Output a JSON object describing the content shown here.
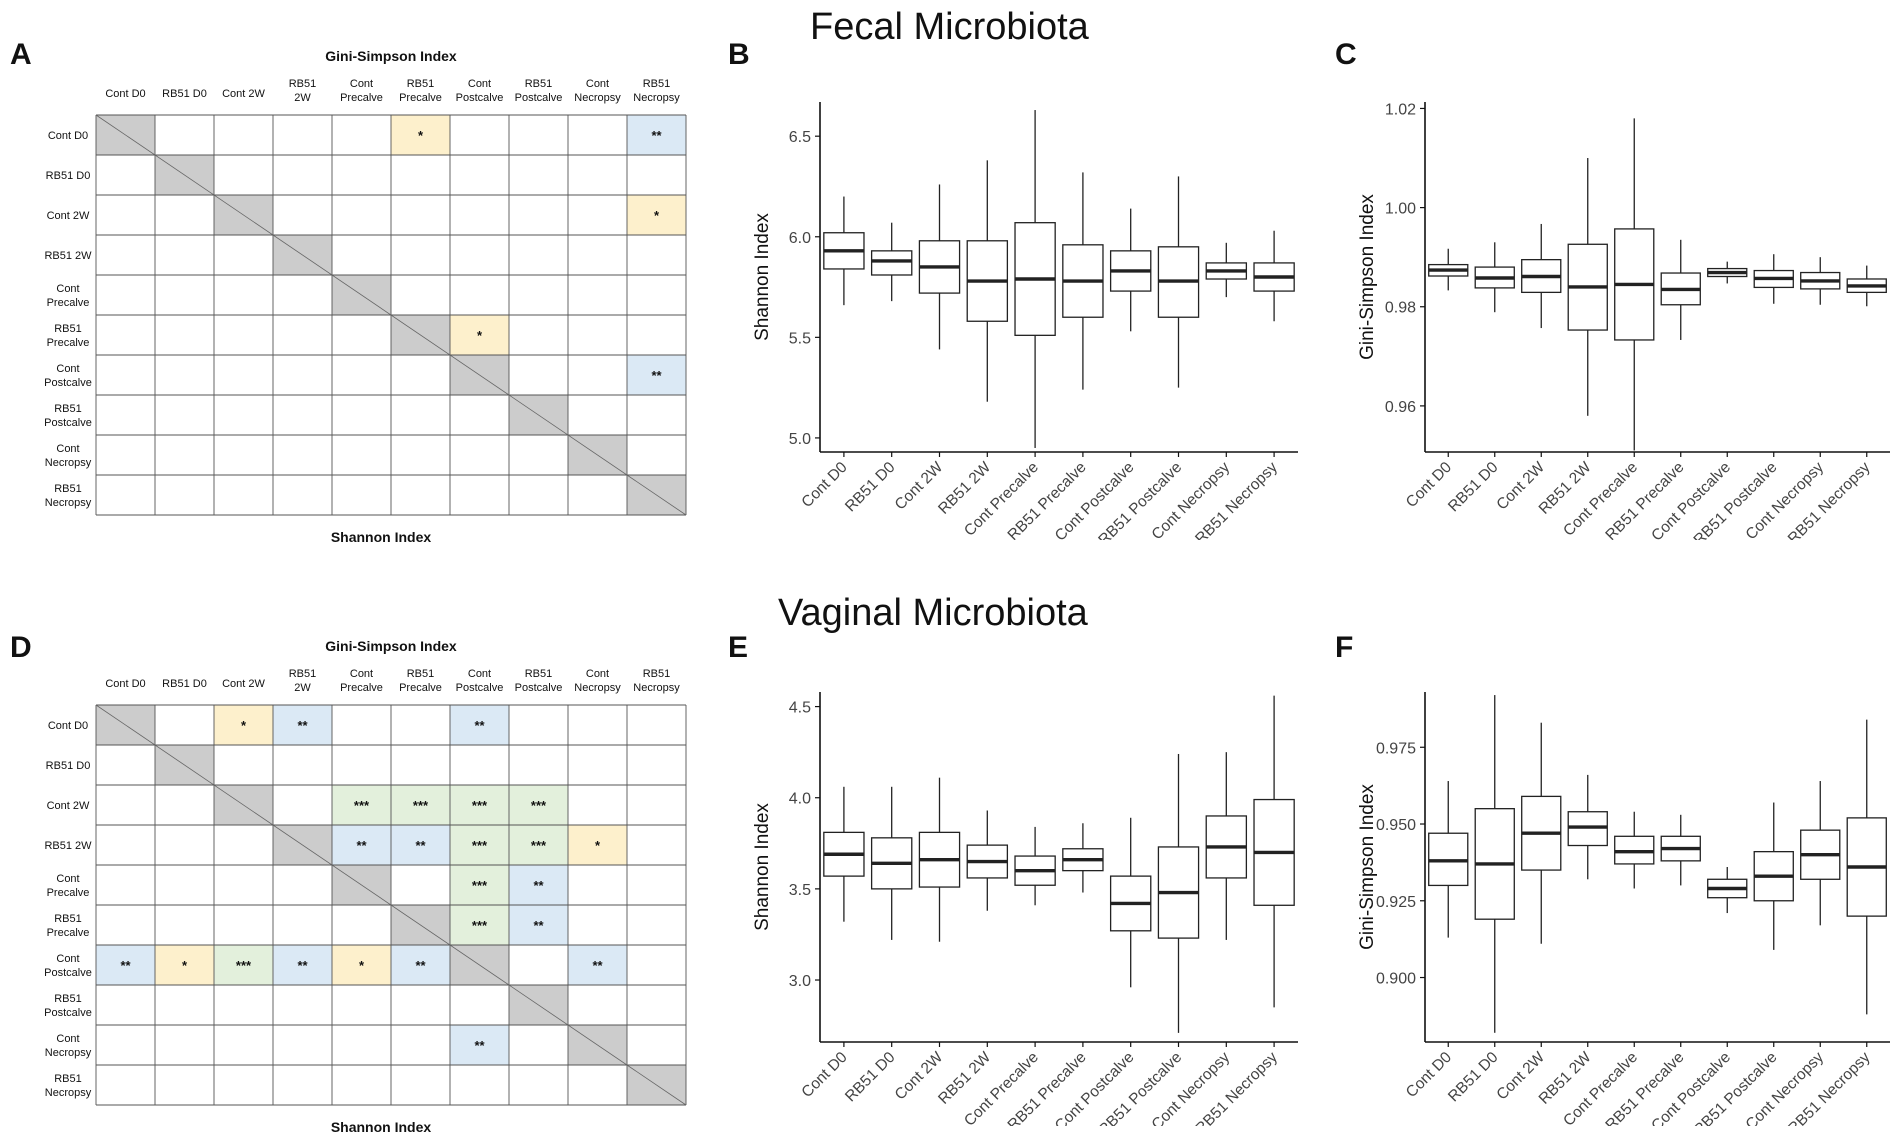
{
  "colors": {
    "gray": "#cccccc",
    "yellow": "#fdf0cc",
    "blue": "#dbe9f5",
    "green": "#e3f0dc",
    "grid": "#555555"
  },
  "titles": {
    "fecal": "Fecal Microbiota",
    "vaginal": "Vaginal Microbiota"
  },
  "panels": {
    "A": "A",
    "B": "B",
    "C": "C",
    "D": "D",
    "E": "E",
    "F": "F"
  },
  "matrix": {
    "top_title": "Gini-Simpson Index",
    "bottom_title": "Shannon Index",
    "col_labels": [
      [
        "Cont D0"
      ],
      [
        "RB51 D0"
      ],
      [
        "Cont 2W"
      ],
      [
        "RB51",
        "2W"
      ],
      [
        "Cont",
        "Precalve"
      ],
      [
        "RB51",
        "Precalve"
      ],
      [
        "Cont",
        "Postcalve"
      ],
      [
        "RB51",
        "Postcalve"
      ],
      [
        "Cont",
        "Necropsy"
      ],
      [
        "RB51",
        "Necropsy"
      ]
    ],
    "row_labels": [
      [
        "Cont D0"
      ],
      [
        "RB51 D0"
      ],
      [
        "Cont 2W"
      ],
      [
        "RB51 2W"
      ],
      [
        "Cont",
        "Precalve"
      ],
      [
        "RB51",
        "Precalve"
      ],
      [
        "Cont",
        "Postcalve"
      ],
      [
        "RB51",
        "Postcalve"
      ],
      [
        "Cont",
        "Necropsy"
      ],
      [
        "RB51",
        "Necropsy"
      ]
    ]
  },
  "chart_data": [
    {
      "panel": "A",
      "type": "table",
      "title": "Gini-Simpson Index",
      "xlabel": "Shannon Index",
      "cells": [
        {
          "row": 0,
          "col": 5,
          "label": "*",
          "color": "yellow"
        },
        {
          "row": 0,
          "col": 9,
          "label": "**",
          "color": "blue"
        },
        {
          "row": 2,
          "col": 9,
          "label": "*",
          "color": "yellow"
        },
        {
          "row": 5,
          "col": 6,
          "label": "*",
          "color": "yellow"
        },
        {
          "row": 6,
          "col": 9,
          "label": "**",
          "color": "blue"
        }
      ]
    },
    {
      "panel": "D",
      "type": "table",
      "title": "Gini-Simpson Index",
      "xlabel": "Shannon Index",
      "cells": [
        {
          "row": 0,
          "col": 2,
          "label": "*",
          "color": "yellow"
        },
        {
          "row": 0,
          "col": 3,
          "label": "**",
          "color": "blue"
        },
        {
          "row": 0,
          "col": 6,
          "label": "**",
          "color": "blue"
        },
        {
          "row": 2,
          "col": 4,
          "label": "***",
          "color": "green"
        },
        {
          "row": 2,
          "col": 5,
          "label": "***",
          "color": "green"
        },
        {
          "row": 2,
          "col": 6,
          "label": "***",
          "color": "green"
        },
        {
          "row": 2,
          "col": 7,
          "label": "***",
          "color": "green"
        },
        {
          "row": 3,
          "col": 4,
          "label": "**",
          "color": "blue"
        },
        {
          "row": 3,
          "col": 5,
          "label": "**",
          "color": "blue"
        },
        {
          "row": 3,
          "col": 6,
          "label": "***",
          "color": "green"
        },
        {
          "row": 3,
          "col": 7,
          "label": "***",
          "color": "green"
        },
        {
          "row": 3,
          "col": 8,
          "label": "*",
          "color": "yellow"
        },
        {
          "row": 4,
          "col": 6,
          "label": "***",
          "color": "green"
        },
        {
          "row": 4,
          "col": 7,
          "label": "**",
          "color": "blue"
        },
        {
          "row": 5,
          "col": 6,
          "label": "***",
          "color": "green"
        },
        {
          "row": 5,
          "col": 7,
          "label": "**",
          "color": "blue"
        },
        {
          "row": 6,
          "col": 0,
          "label": "**",
          "color": "blue"
        },
        {
          "row": 6,
          "col": 1,
          "label": "*",
          "color": "yellow"
        },
        {
          "row": 6,
          "col": 2,
          "label": "***",
          "color": "green"
        },
        {
          "row": 6,
          "col": 3,
          "label": "**",
          "color": "blue"
        },
        {
          "row": 6,
          "col": 4,
          "label": "*",
          "color": "yellow"
        },
        {
          "row": 6,
          "col": 5,
          "label": "**",
          "color": "blue"
        },
        {
          "row": 6,
          "col": 8,
          "label": "**",
          "color": "blue"
        },
        {
          "row": 8,
          "col": 6,
          "label": "**",
          "color": "blue"
        }
      ]
    },
    {
      "panel": "B",
      "type": "boxplot",
      "ylabel": "Shannon Index",
      "ylim": [
        4.93,
        6.67
      ],
      "yticks": [
        "5.0",
        "5.5",
        "6.0",
        "6.5"
      ],
      "categories": [
        "Cont D0",
        "RB51 D0",
        "Cont 2W",
        "RB51 2W",
        "Cont Precalve",
        "RB51 Precalve",
        "Cont Postcalve",
        "RB51 Postcalve",
        "Cont Necropsy",
        "RB51 Necropsy"
      ],
      "boxes": [
        {
          "min": 5.66,
          "q1": 5.84,
          "median": 5.93,
          "q3": 6.02,
          "max": 6.2
        },
        {
          "min": 5.68,
          "q1": 5.81,
          "median": 5.88,
          "q3": 5.93,
          "max": 6.07
        },
        {
          "min": 5.44,
          "q1": 5.72,
          "median": 5.85,
          "q3": 5.98,
          "max": 6.26
        },
        {
          "min": 5.18,
          "q1": 5.58,
          "median": 5.78,
          "q3": 5.98,
          "max": 6.38
        },
        {
          "min": 4.95,
          "q1": 5.51,
          "median": 5.79,
          "q3": 6.07,
          "max": 6.63
        },
        {
          "min": 5.24,
          "q1": 5.6,
          "median": 5.78,
          "q3": 5.96,
          "max": 6.32
        },
        {
          "min": 5.53,
          "q1": 5.73,
          "median": 5.83,
          "q3": 5.93,
          "max": 6.14
        },
        {
          "min": 5.25,
          "q1": 5.6,
          "median": 5.78,
          "q3": 5.95,
          "max": 6.3
        },
        {
          "min": 5.7,
          "q1": 5.79,
          "median": 5.83,
          "q3": 5.87,
          "max": 5.97
        },
        {
          "min": 5.58,
          "q1": 5.73,
          "median": 5.8,
          "q3": 5.87,
          "max": 6.03
        }
      ]
    },
    {
      "panel": "C",
      "type": "boxplot",
      "ylabel": "Gini-Simpson Index",
      "ylim": [
        0.9507,
        1.0213
      ],
      "yticks": [
        "0.96",
        "0.98",
        "1.00",
        "1.02"
      ],
      "categories": [
        "Cont D0",
        "RB51 D0",
        "Cont 2W",
        "RB51 2W",
        "Cont Precalve",
        "RB51 Precalve",
        "Cont Postcalve",
        "RB51 Postcalve",
        "Cont Necropsy",
        "RB51 Necropsy"
      ],
      "boxes": [
        {
          "min": 0.9833,
          "q1": 0.9862,
          "median": 0.9874,
          "q3": 0.9885,
          "max": 0.9917
        },
        {
          "min": 0.9789,
          "q1": 0.9838,
          "median": 0.9858,
          "q3": 0.988,
          "max": 0.993
        },
        {
          "min": 0.9757,
          "q1": 0.9829,
          "median": 0.9861,
          "q3": 0.9895,
          "max": 0.9967
        },
        {
          "min": 0.958,
          "q1": 0.9753,
          "median": 0.984,
          "q3": 0.9926,
          "max": 1.01
        },
        {
          "min": 0.951,
          "q1": 0.9733,
          "median": 0.9845,
          "q3": 0.9957,
          "max": 1.018
        },
        {
          "min": 0.9733,
          "q1": 0.9804,
          "median": 0.9835,
          "q3": 0.9868,
          "max": 0.9935
        },
        {
          "min": 0.9847,
          "q1": 0.9861,
          "median": 0.9869,
          "q3": 0.9877,
          "max": 0.9891
        },
        {
          "min": 0.9806,
          "q1": 0.9839,
          "median": 0.9857,
          "q3": 0.9873,
          "max": 0.9906
        },
        {
          "min": 0.9804,
          "q1": 0.9836,
          "median": 0.9852,
          "q3": 0.9869,
          "max": 0.99
        },
        {
          "min": 0.9801,
          "q1": 0.9829,
          "median": 0.9842,
          "q3": 0.9856,
          "max": 0.9883
        }
      ]
    },
    {
      "panel": "E",
      "type": "boxplot",
      "ylabel": "Shannon Index",
      "ylim": [
        2.66,
        4.58
      ],
      "yticks": [
        "3.0",
        "3.5",
        "4.0",
        "4.5"
      ],
      "categories": [
        "Cont D0",
        "RB51 D0",
        "Cont 2W",
        "RB51 2W",
        "Cont Precalve",
        "RB51 Precalve",
        "Cont Postcalve",
        "RB51 Postcalve",
        "Cont Necropsy",
        "RB51 Necropsy"
      ],
      "boxes": [
        {
          "min": 3.32,
          "q1": 3.57,
          "median": 3.69,
          "q3": 3.81,
          "max": 4.06
        },
        {
          "min": 3.22,
          "q1": 3.5,
          "median": 3.64,
          "q3": 3.78,
          "max": 4.06
        },
        {
          "min": 3.21,
          "q1": 3.51,
          "median": 3.66,
          "q3": 3.81,
          "max": 4.11
        },
        {
          "min": 3.38,
          "q1": 3.56,
          "median": 3.65,
          "q3": 3.74,
          "max": 3.93
        },
        {
          "min": 3.41,
          "q1": 3.52,
          "median": 3.6,
          "q3": 3.68,
          "max": 3.84
        },
        {
          "min": 3.48,
          "q1": 3.6,
          "median": 3.66,
          "q3": 3.72,
          "max": 3.86
        },
        {
          "min": 2.96,
          "q1": 3.27,
          "median": 3.42,
          "q3": 3.57,
          "max": 3.89
        },
        {
          "min": 2.71,
          "q1": 3.23,
          "median": 3.48,
          "q3": 3.73,
          "max": 4.24
        },
        {
          "min": 3.22,
          "q1": 3.56,
          "median": 3.73,
          "q3": 3.9,
          "max": 4.25
        },
        {
          "min": 2.85,
          "q1": 3.41,
          "median": 3.7,
          "q3": 3.99,
          "max": 4.56
        }
      ]
    },
    {
      "panel": "F",
      "type": "boxplot",
      "ylabel": "Gini-Simpson Index",
      "ylim": [
        0.879,
        0.993
      ],
      "yticks": [
        "0.900",
        "0.925",
        "0.950",
        "0.975"
      ],
      "categories": [
        "Cont D0",
        "RB51 D0",
        "Cont 2W",
        "RB51 2W",
        "Cont Precalve",
        "RB51 Precalve",
        "Cont Postcalve",
        "RB51 Postcalve",
        "Cont Necropsy",
        "RB51 Necropsy"
      ],
      "boxes": [
        {
          "min": 0.913,
          "q1": 0.93,
          "median": 0.938,
          "q3": 0.947,
          "max": 0.964
        },
        {
          "min": 0.882,
          "q1": 0.919,
          "median": 0.937,
          "q3": 0.955,
          "max": 0.992
        },
        {
          "min": 0.911,
          "q1": 0.935,
          "median": 0.947,
          "q3": 0.959,
          "max": 0.983
        },
        {
          "min": 0.932,
          "q1": 0.943,
          "median": 0.949,
          "q3": 0.954,
          "max": 0.966
        },
        {
          "min": 0.929,
          "q1": 0.937,
          "median": 0.941,
          "q3": 0.946,
          "max": 0.954
        },
        {
          "min": 0.93,
          "q1": 0.938,
          "median": 0.942,
          "q3": 0.946,
          "max": 0.953
        },
        {
          "min": 0.921,
          "q1": 0.926,
          "median": 0.929,
          "q3": 0.932,
          "max": 0.936
        },
        {
          "min": 0.909,
          "q1": 0.925,
          "median": 0.933,
          "q3": 0.941,
          "max": 0.957
        },
        {
          "min": 0.917,
          "q1": 0.932,
          "median": 0.94,
          "q3": 0.948,
          "max": 0.964
        },
        {
          "min": 0.888,
          "q1": 0.92,
          "median": 0.936,
          "q3": 0.952,
          "max": 0.984
        }
      ]
    }
  ]
}
